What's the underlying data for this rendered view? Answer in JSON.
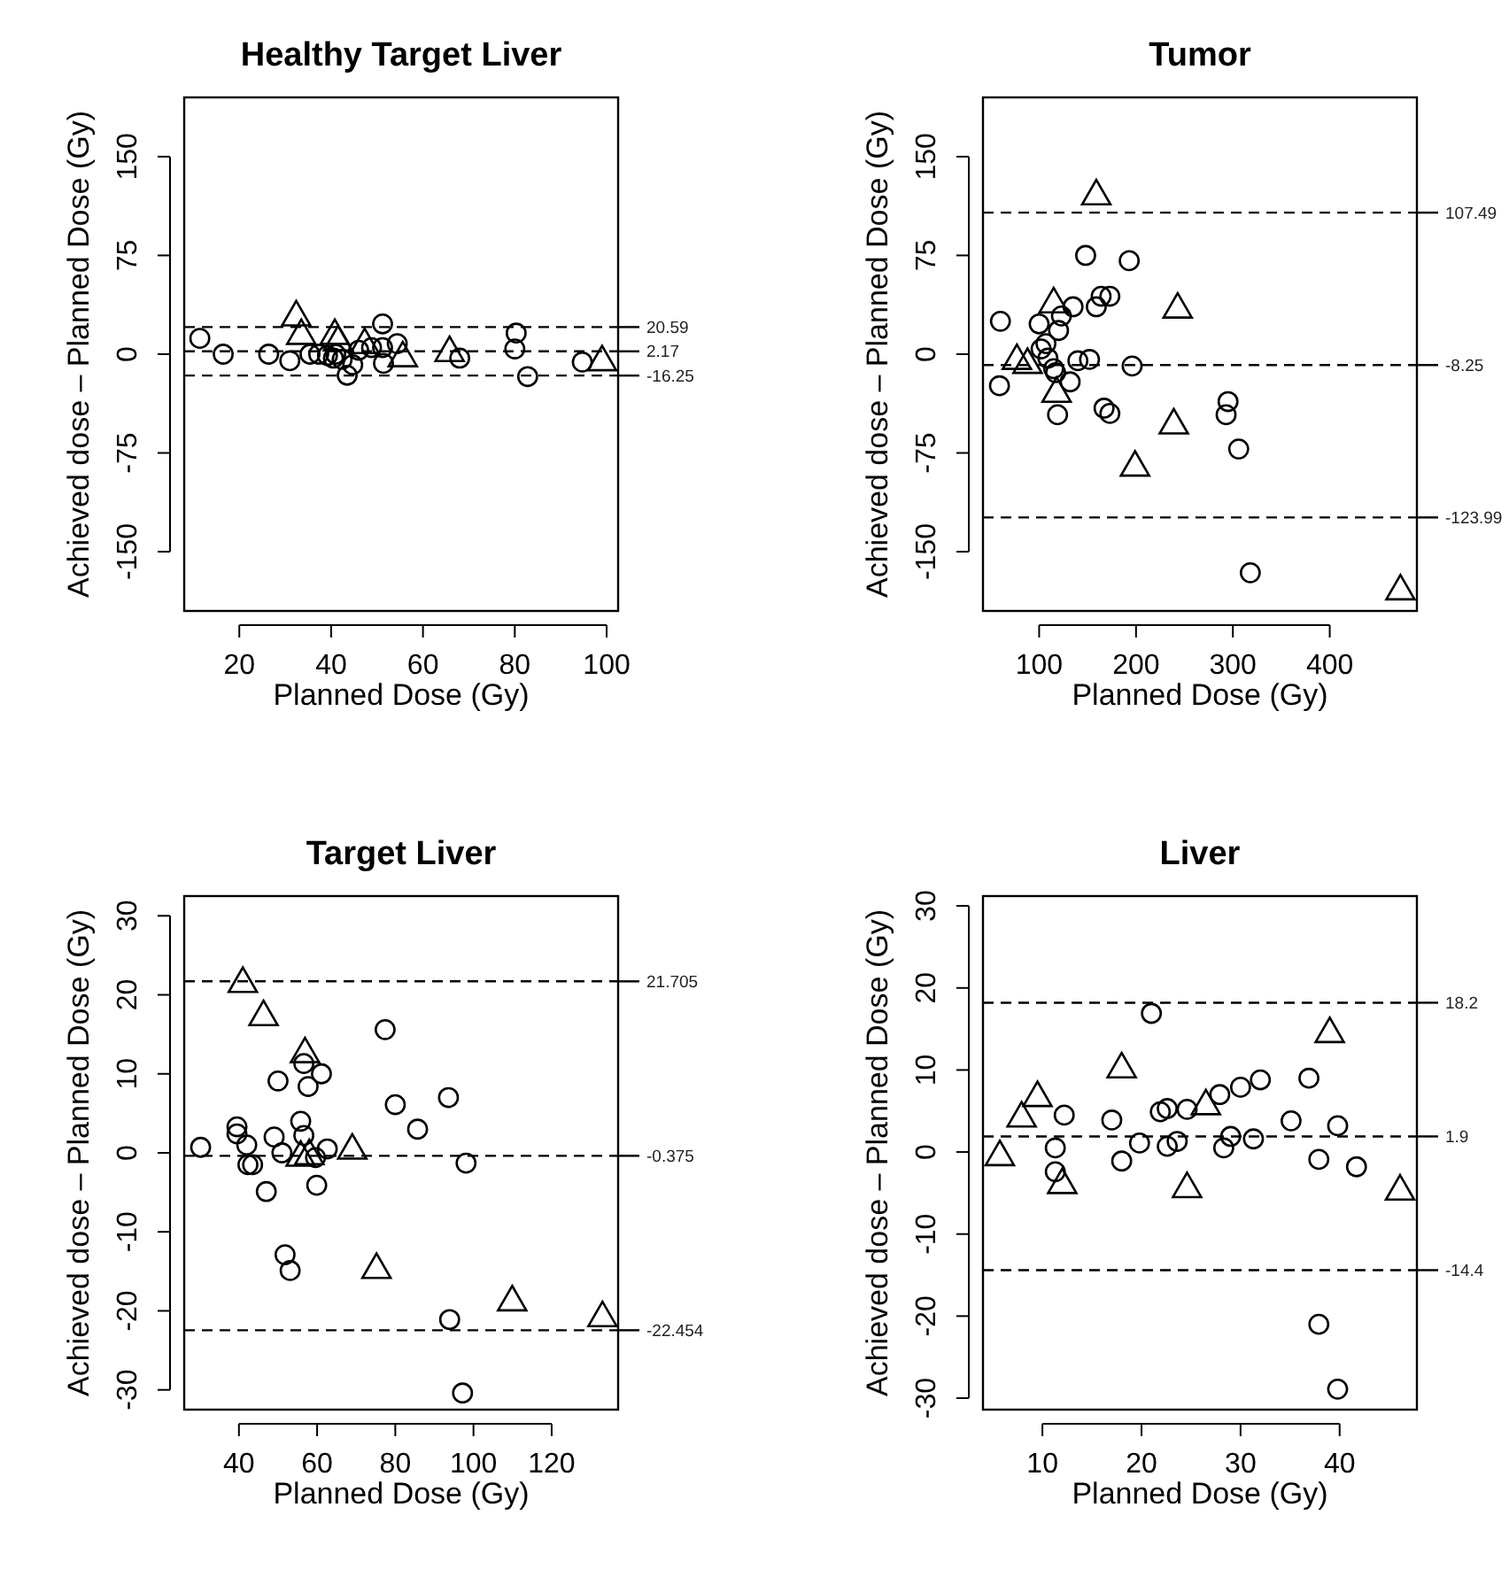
{
  "chart_data": [
    {
      "type": "scatter",
      "title": "Healthy Target Liver",
      "xlabel": "Planned Dose (Gy)",
      "ylabel": "Achieved dose – Planned Dose (Gy)",
      "xlim": [
        8,
        102.5
      ],
      "ylim": [
        -195,
        195
      ],
      "xticks": [
        20,
        40,
        60,
        80,
        100
      ],
      "yticks": [
        -150,
        -75,
        0,
        75,
        150
      ],
      "grid": false,
      "ref_lines": [
        {
          "axis": "y",
          "value": 20.59,
          "label": "20.59",
          "line_style": "dashed"
        },
        {
          "axis": "y",
          "value": 2.17,
          "label": "2.17",
          "line_style": "dashed"
        },
        {
          "axis": "y",
          "value": -16.25,
          "label": "-16.25",
          "line_style": "dashed"
        }
      ],
      "series": [
        {
          "marker": "triangle",
          "color": "#000000",
          "x": [
            32.4,
            33.5,
            40.8,
            41.5,
            47.3,
            55.6,
            65.8,
            99
          ],
          "values": [
            28,
            14,
            14,
            9,
            7,
            -3,
            1,
            -6
          ]
        },
        {
          "marker": "circle",
          "color": "#000000",
          "x": [
            11.4,
            16.5,
            26.4,
            31,
            35.4,
            37.3,
            39.2,
            40.5,
            41,
            42.4,
            43.5,
            44.7,
            46,
            48.8,
            51.2,
            51.2,
            51.4,
            54.4,
            68,
            80.3,
            80,
            82.8,
            94.7
          ],
          "values": [
            12,
            0,
            0,
            -5,
            0,
            0,
            -1,
            -3,
            0,
            -4,
            -16,
            -8,
            3,
            5,
            23,
            5,
            -7,
            8,
            -3,
            16,
            4,
            -17,
            -6
          ]
        }
      ]
    },
    {
      "type": "scatter",
      "title": "Tumor",
      "xlabel": "Planned Dose (Gy)",
      "ylabel": "Achieved dose – Planned Dose (Gy)",
      "xlim": [
        42,
        490
      ],
      "ylim": [
        -195,
        195
      ],
      "xticks": [
        100,
        200,
        300,
        400
      ],
      "yticks": [
        -150,
        -75,
        0,
        75,
        150
      ],
      "grid": false,
      "ref_lines": [
        {
          "axis": "y",
          "value": 107.49,
          "label": "107.49",
          "line_style": "dashed"
        },
        {
          "axis": "y",
          "value": -8.25,
          "label": "-8.25",
          "line_style": "dashed"
        },
        {
          "axis": "y",
          "value": -123.99,
          "label": "-123.99",
          "line_style": "dashed"
        }
      ],
      "series": [
        {
          "marker": "triangle",
          "color": "#000000",
          "x": [
            159,
            115,
            243,
            77,
            88,
            118,
            239,
            199,
            473
          ],
          "values": [
            120,
            38,
            34,
            -5,
            -8,
            -30,
            -54,
            -86,
            -180
          ]
        },
        {
          "marker": "circle",
          "color": "#000000",
          "x": [
            60,
            59,
            100,
            123,
            135,
            120,
            107,
            102,
            109,
            115,
            117,
            132,
            119,
            148,
            159,
            164,
            173,
            140,
            152,
            167,
            173,
            193,
            196,
            295,
            293,
            306,
            318
          ],
          "values": [
            25,
            -24,
            23,
            29,
            36,
            18,
            8,
            4,
            -3,
            -11,
            -14,
            -21,
            -46,
            75,
            36,
            44,
            44,
            -5,
            -4,
            -41,
            -45,
            71,
            -9,
            -36,
            -46,
            -72,
            -166
          ]
        }
      ]
    },
    {
      "type": "scatter",
      "title": "Target Liver",
      "xlabel": "Planned Dose (Gy)",
      "ylabel": "Achieved dose – Planned Dose (Gy)",
      "xlim": [
        26,
        137
      ],
      "ylim": [
        -32.5,
        32.5
      ],
      "xticks": [
        40,
        60,
        80,
        100,
        120
      ],
      "yticks": [
        -30,
        -20,
        -10,
        0,
        10,
        20,
        30
      ],
      "grid": false,
      "ref_lines": [
        {
          "axis": "y",
          "value": 21.705,
          "label": "21.705",
          "line_style": "dashed"
        },
        {
          "axis": "y",
          "value": -0.375,
          "label": "-0.375",
          "line_style": "dashed"
        },
        {
          "axis": "y",
          "value": -22.454,
          "label": "-22.454",
          "line_style": "dashed"
        }
      ],
      "series": [
        {
          "marker": "triangle",
          "color": "#000000",
          "x": [
            41,
            46.3,
            56.9,
            55.8,
            58,
            69,
            75.2,
            109.9,
            133
          ],
          "values": [
            21.4,
            17.2,
            12.5,
            -0.6,
            -0.4,
            0.3,
            -14.8,
            -18.9,
            -20.9
          ]
        },
        {
          "marker": "circle",
          "color": "#000000",
          "x": [
            30.2,
            39.5,
            39.5,
            42,
            42.3,
            43.5,
            47,
            49,
            50,
            51,
            51.8,
            53.1,
            55.8,
            56.6,
            56.6,
            57.7,
            59.6,
            59.9,
            61.1,
            62.6,
            77.4,
            80,
            85.7,
            93.6,
            98.1,
            93.9,
            97.2
          ],
          "values": [
            0.7,
            3.3,
            2.4,
            1,
            -1.5,
            -1.5,
            -4.9,
            2,
            9.1,
            0,
            -12.9,
            -14.9,
            4,
            2.2,
            11.3,
            8.4,
            -0.6,
            -4.1,
            10,
            0.5,
            15.6,
            6.1,
            3,
            7,
            -1.3,
            -21.1,
            -30.4
          ]
        }
      ]
    },
    {
      "type": "scatter",
      "title": "Liver",
      "xlabel": "Planned Dose (Gy)",
      "ylabel": "Achieved dose – Planned Dose (Gy)",
      "xlim": [
        4,
        47.8
      ],
      "ylim": [
        -31.4,
        31.2
      ],
      "xticks": [
        10,
        20,
        30,
        40
      ],
      "yticks": [
        -30,
        -20,
        -10,
        0,
        10,
        20,
        30
      ],
      "grid": false,
      "ref_lines": [
        {
          "axis": "y",
          "value": 18.2,
          "label": "18.2",
          "line_style": "dashed"
        },
        {
          "axis": "y",
          "value": 1.9,
          "label": "1.9",
          "line_style": "dashed"
        },
        {
          "axis": "y",
          "value": -14.4,
          "label": "-14.4",
          "line_style": "dashed"
        }
      ],
      "series": [
        {
          "marker": "triangle",
          "color": "#000000",
          "x": [
            5.7,
            7.9,
            9.5,
            12,
            18,
            24.6,
            26.5,
            39,
            46.1
          ],
          "values": [
            -0.6,
            4.1,
            6.6,
            -4,
            10.1,
            -4.5,
            5.6,
            14.4,
            -4.8
          ]
        },
        {
          "marker": "circle",
          "color": "#000000",
          "x": [
            11.3,
            11.3,
            12.2,
            17,
            18,
            19.8,
            21,
            21.9,
            22.6,
            22.6,
            23.6,
            24.6,
            27.9,
            28.3,
            29,
            30,
            31.3,
            32,
            35.1,
            36.9,
            37.9,
            37.9,
            39.8,
            41.7,
            39.8
          ],
          "values": [
            0.5,
            -2.4,
            4.5,
            3.9,
            -1.1,
            1.1,
            16.9,
            4.9,
            5.3,
            0.7,
            1.3,
            5.2,
            7,
            0.5,
            1.9,
            7.9,
            1.6,
            8.8,
            3.8,
            9,
            -0.9,
            -21,
            3.2,
            -1.8,
            -28.9
          ]
        }
      ]
    }
  ]
}
